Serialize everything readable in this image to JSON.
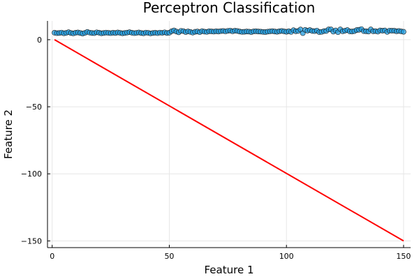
{
  "chart_data": {
    "type": "scatter",
    "title": "Perceptron Classification",
    "xlabel": "Feature 1",
    "ylabel": "Feature 2",
    "xlim": [
      -2,
      153
    ],
    "ylim": [
      -155,
      14
    ],
    "xticks": [
      0,
      50,
      100,
      150
    ],
    "yticks": [
      0,
      -50,
      -100,
      -150
    ],
    "ytick_labels": [
      "0",
      "−50",
      "−100",
      "−150"
    ],
    "grid": true,
    "legend": "none",
    "series": [
      {
        "kind": "scatter",
        "color": "#1f9bde",
        "x": [
          1,
          2,
          3,
          4,
          5,
          6,
          7,
          8,
          9,
          10,
          11,
          12,
          13,
          14,
          15,
          16,
          17,
          18,
          19,
          20,
          21,
          22,
          23,
          24,
          25,
          26,
          27,
          28,
          29,
          30,
          31,
          32,
          33,
          34,
          35,
          36,
          37,
          38,
          39,
          40,
          41,
          42,
          43,
          44,
          45,
          46,
          47,
          48,
          49,
          50,
          51,
          52,
          53,
          54,
          55,
          56,
          57,
          58,
          59,
          60,
          61,
          62,
          63,
          64,
          65,
          66,
          67,
          68,
          69,
          70,
          71,
          72,
          73,
          74,
          75,
          76,
          77,
          78,
          79,
          80,
          81,
          82,
          83,
          84,
          85,
          86,
          87,
          88,
          89,
          90,
          91,
          92,
          93,
          94,
          95,
          96,
          97,
          98,
          99,
          100,
          101,
          102,
          103,
          104,
          105,
          106,
          107,
          108,
          109,
          110,
          111,
          112,
          113,
          114,
          115,
          116,
          117,
          118,
          119,
          120,
          121,
          122,
          123,
          124,
          125,
          126,
          127,
          128,
          129,
          130,
          131,
          132,
          133,
          134,
          135,
          136,
          137,
          138,
          139,
          140,
          141,
          142,
          143,
          144,
          145,
          146,
          147,
          148,
          149,
          150
        ],
        "y": [
          5.2,
          4.9,
          5.0,
          5.3,
          4.8,
          5.1,
          5.6,
          5.0,
          4.7,
          5.2,
          5.4,
          5.0,
          4.6,
          5.1,
          5.8,
          5.3,
          5.0,
          4.9,
          5.5,
          5.2,
          4.8,
          5.0,
          5.3,
          5.1,
          4.9,
          5.2,
          5.0,
          5.4,
          5.1,
          4.8,
          5.0,
          5.3,
          5.6,
          5.2,
          4.9,
          5.1,
          5.4,
          5.0,
          4.8,
          5.3,
          5.1,
          4.7,
          5.0,
          5.2,
          4.9,
          5.3,
          5.1,
          5.5,
          5.0,
          5.2,
          6.3,
          6.9,
          6.1,
          5.5,
          6.6,
          6.4,
          5.7,
          6.2,
          5.8,
          5.3,
          5.9,
          6.1,
          5.6,
          6.4,
          6.0,
          5.8,
          6.3,
          6.2,
          6.0,
          6.3,
          6.1,
          6.4,
          6.5,
          6.2,
          6.6,
          6.8,
          6.3,
          6.7,
          6.5,
          6.1,
          5.8,
          5.9,
          6.1,
          6.0,
          5.7,
          6.2,
          6.3,
          6.1,
          6.0,
          5.8,
          5.7,
          6.0,
          6.2,
          6.4,
          6.1,
          5.9,
          6.3,
          6.5,
          6.2,
          5.9,
          6.3,
          5.8,
          7.1,
          6.3,
          6.5,
          7.6,
          4.9,
          7.3,
          6.7,
          7.2,
          6.5,
          6.4,
          6.8,
          5.7,
          5.8,
          6.4,
          6.5,
          7.7,
          7.7,
          6.0,
          6.9,
          5.6,
          7.7,
          6.3,
          6.7,
          7.2,
          6.2,
          6.1,
          6.4,
          7.2,
          7.4,
          7.9,
          6.4,
          6.3,
          6.1,
          7.7,
          6.3,
          6.4,
          6.0,
          6.9,
          6.7,
          6.9,
          5.8,
          6.8,
          6.7,
          6.7,
          6.3,
          6.5,
          6.2,
          5.9
        ]
      },
      {
        "kind": "line",
        "color": "#ff0000",
        "x": [
          1,
          150
        ],
        "y": [
          0,
          -150
        ]
      }
    ]
  }
}
